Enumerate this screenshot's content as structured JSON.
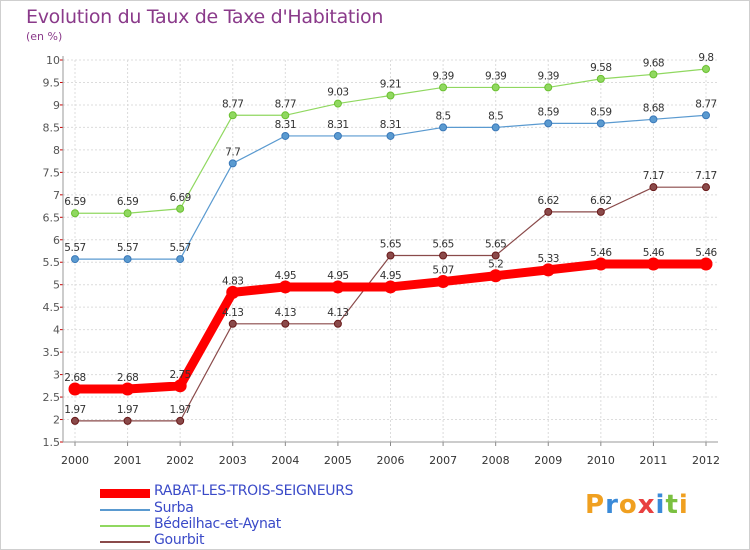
{
  "header": {
    "title": "Evolution du Taux de Taxe d'Habitation",
    "unit": "(en %)"
  },
  "logo": {
    "text": "Proxiti",
    "colors": [
      "#f0a020",
      "#3a8ad8",
      "#f0a020",
      "#e84040",
      "#3a8ad8",
      "#7ac040",
      "#f0a020"
    ]
  },
  "chart_data": {
    "type": "line",
    "title": "Evolution du Taux de Taxe d'Habitation",
    "ylabel": "(en %)",
    "x": [
      "2000",
      "2001",
      "2002",
      "2003",
      "2004",
      "2005",
      "2006",
      "2007",
      "2008",
      "2009",
      "2010",
      "2011",
      "2012"
    ],
    "ylim": [
      1.5,
      10
    ],
    "yticks": [
      "1.5",
      "2",
      "2.5",
      "3",
      "3.5",
      "4",
      "4.5",
      "5",
      "5.5",
      "6",
      "6.5",
      "7",
      "7.5",
      "8",
      "8.5",
      "9",
      "9.5",
      "10"
    ],
    "grid": true,
    "series": [
      {
        "name": "RABAT-LES-TROIS-SEIGNEURS",
        "color": "#ff0000",
        "width": 9,
        "values": [
          2.68,
          2.68,
          2.75,
          4.83,
          4.95,
          4.95,
          4.95,
          5.07,
          5.2,
          5.33,
          5.46,
          5.46,
          5.46
        ],
        "labels": [
          "2.68",
          "2.68",
          "2.75",
          "4.83",
          "4.95",
          "4.95",
          "4.95",
          "5.07",
          "5.2",
          "5.33",
          "5.46",
          "5.46",
          "5.46"
        ]
      },
      {
        "name": "Surba",
        "color": "#5a9ad0",
        "width": 1.2,
        "values": [
          5.57,
          5.57,
          5.57,
          7.7,
          8.31,
          8.31,
          8.31,
          8.5,
          8.5,
          8.59,
          8.59,
          8.68,
          8.77
        ],
        "labels": [
          "5.57",
          "5.57",
          "5.57",
          "7.7",
          "8.31",
          "8.31",
          "8.31",
          "8.5",
          "8.5",
          "8.59",
          "8.59",
          "8.68",
          "8.77"
        ]
      },
      {
        "name": "Bédeilhac-et-Aynat",
        "color": "#90d860",
        "width": 1.2,
        "values": [
          6.59,
          6.59,
          6.69,
          8.77,
          8.77,
          9.03,
          9.21,
          9.39,
          9.39,
          9.39,
          9.58,
          9.68,
          9.8
        ],
        "labels": [
          "6.59",
          "6.59",
          "6.69",
          "8.77",
          "8.77",
          "9.03",
          "9.21",
          "9.39",
          "9.39",
          "9.39",
          "9.58",
          "9.68",
          "9.8"
        ]
      },
      {
        "name": "Gourbit",
        "color": "#8a4a4a",
        "width": 1.2,
        "values": [
          1.97,
          1.97,
          1.97,
          4.13,
          4.13,
          4.13,
          5.65,
          5.65,
          5.65,
          6.62,
          6.62,
          7.17,
          7.17
        ],
        "labels": [
          "1.97",
          "1.97",
          "1.97",
          "4.13",
          "4.13",
          "4.13",
          "5.65",
          "5.65",
          "5.65",
          "6.62",
          "6.62",
          "7.17",
          "7.17"
        ]
      }
    ],
    "legend": "bottom-left"
  }
}
